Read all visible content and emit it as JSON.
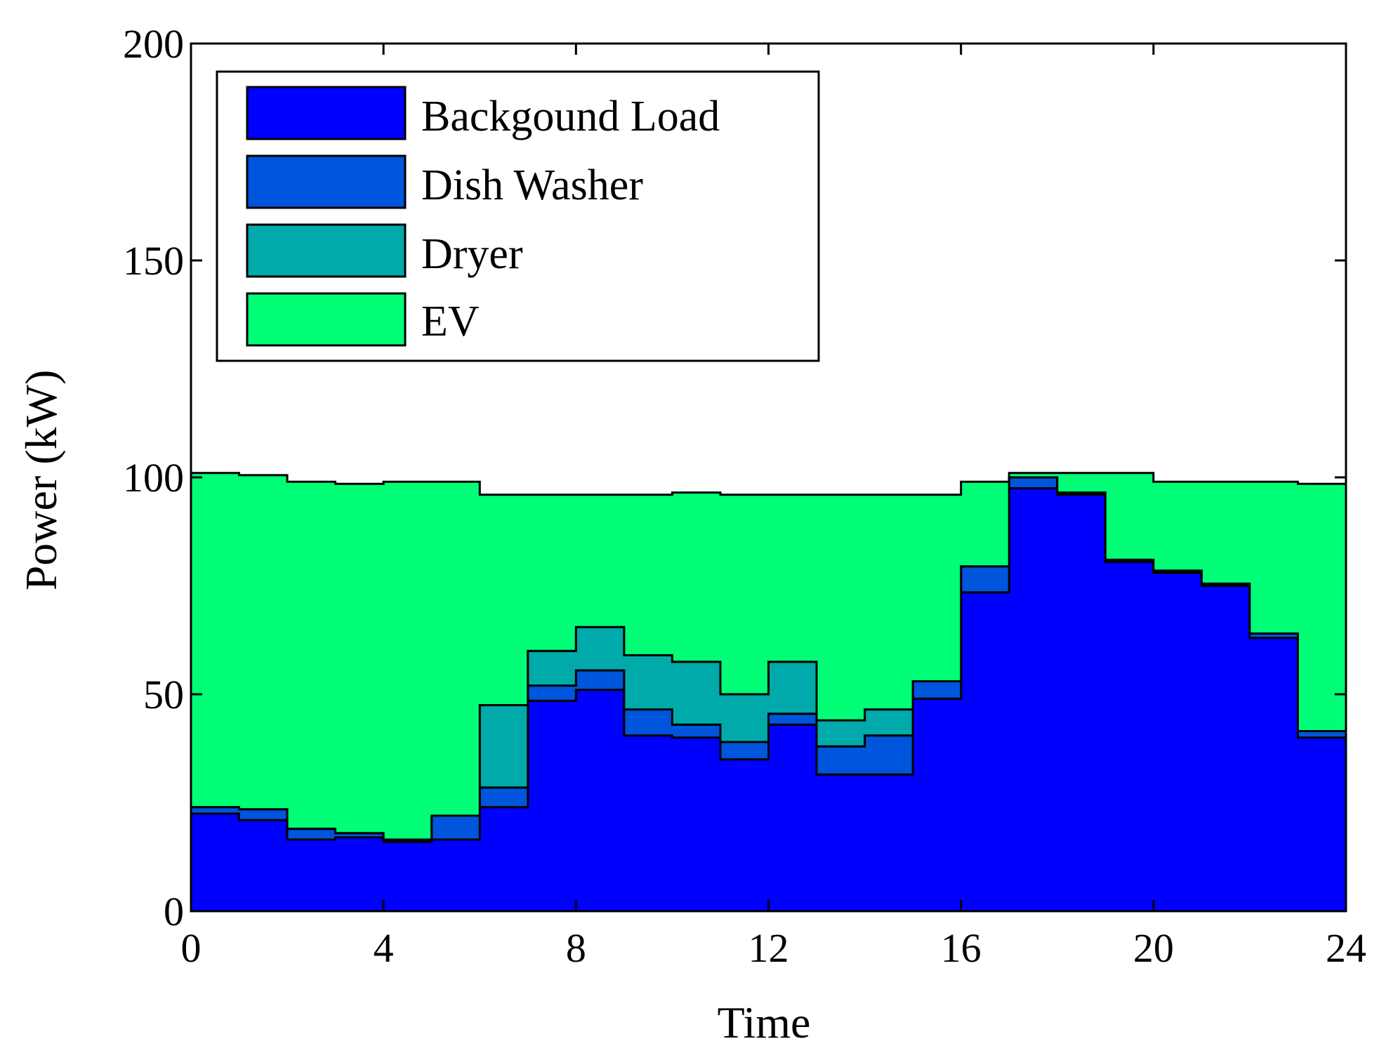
{
  "chart_data": {
    "type": "area",
    "title": "",
    "xlabel": "Time",
    "ylabel": "Power (kW)",
    "xlim": [
      0,
      24
    ],
    "ylim": [
      0,
      200
    ],
    "xticks": [
      0,
      4,
      8,
      12,
      16,
      20,
      24
    ],
    "yticks": [
      0,
      50,
      100,
      150,
      200
    ],
    "grid": false,
    "legend_position": "top-left",
    "step": "hourly",
    "x": [
      0,
      1,
      2,
      3,
      4,
      5,
      6,
      7,
      8,
      9,
      10,
      11,
      12,
      13,
      14,
      15,
      16,
      17,
      18,
      19,
      20,
      21,
      22,
      23
    ],
    "series": [
      {
        "name": "Backgound Load",
        "color": "#0000ff",
        "values": [
          22.5,
          21.0,
          16.5,
          17.0,
          16.0,
          16.5,
          24.0,
          48.5,
          51.0,
          40.5,
          40.0,
          35.0,
          43.0,
          31.5,
          31.5,
          49.0,
          73.5,
          97.5,
          96.0,
          80.5,
          78.0,
          75.0,
          63.0,
          40.0
        ]
      },
      {
        "name": "Dish Washer",
        "color": "#0055dd",
        "values": [
          1.5,
          2.5,
          2.5,
          1.0,
          0.5,
          5.5,
          4.5,
          3.5,
          4.5,
          6.0,
          3.0,
          4.0,
          2.5,
          6.5,
          9.0,
          4.0,
          6.0,
          2.5,
          0.5,
          0.5,
          0.5,
          0.5,
          1.0,
          1.5
        ]
      },
      {
        "name": "Dryer",
        "color": "#00aaaa",
        "values": [
          0,
          0,
          0,
          0,
          0,
          0,
          19.0,
          8.0,
          10.0,
          12.5,
          14.5,
          11.0,
          12.0,
          6.0,
          6.0,
          0,
          0,
          0,
          0,
          0,
          0,
          0,
          0,
          0
        ]
      },
      {
        "name": "EV",
        "color": "#00ff77",
        "values": [
          77.0,
          77.0,
          80.0,
          80.5,
          82.5,
          77.0,
          48.5,
          36.0,
          30.5,
          37.0,
          39.0,
          46.0,
          38.5,
          52.0,
          49.5,
          43.0,
          19.5,
          1.0,
          4.5,
          20.0,
          20.5,
          23.5,
          35.0,
          57.0
        ]
      }
    ]
  }
}
